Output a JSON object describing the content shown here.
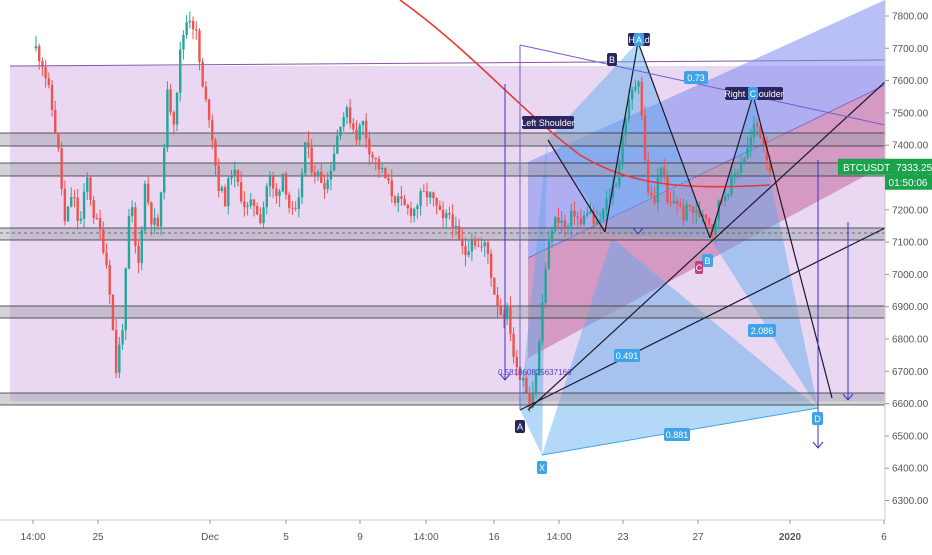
{
  "colors": {
    "bull": "#26a69a",
    "bear": "#ef5350",
    "purple_fill": "#d9b8e8",
    "pink_fill": "#f28a9c",
    "blue_fill": "#7d8cf0",
    "harmonic_fill": "#58a8ee",
    "ma_line": "#e53935",
    "price_badge": "#1aa34a",
    "axis_text": "#555555",
    "marker_dark": "#2b2660",
    "marker_blue": "#3fa3e8"
  },
  "chart_data": {
    "type": "candlestick",
    "symbol": "BTCUSDT",
    "last_price": "7333.25",
    "countdown": "01:50:06",
    "y_axis": {
      "range": [
        6230,
        8030
      ],
      "ticks": [
        "7800.00",
        "7700.00",
        "7600.00",
        "7500.00",
        "7400.00",
        "7300.00",
        "7200.00",
        "7100.00",
        "7000.00",
        "6900.00",
        "6800.00",
        "6700.00",
        "6600.00",
        "6500.00",
        "6400.00",
        "6300.00"
      ]
    },
    "x_axis": {
      "ticks": [
        "14:00",
        "25",
        "Dec",
        "5",
        "9",
        "14:00",
        "16",
        "14:00",
        "23",
        "27",
        "2020",
        "6"
      ]
    },
    "ohlc_path": [
      7700,
      7650,
      7540,
      7400,
      7150,
      7260,
      7140,
      7300,
      7180,
      7120,
      7000,
      6700,
      6860,
      7250,
      7000,
      7280,
      7160,
      7150,
      7560,
      7480,
      7720,
      7810,
      7750,
      7560,
      7480,
      7280,
      7230,
      7330,
      7260,
      7200,
      7220,
      7170,
      7310,
      7230,
      7320,
      7190,
      7180,
      7410,
      7330,
      7300,
      7280,
      7380,
      7490,
      7500,
      7430,
      7470,
      7380,
      7340,
      7300,
      7250,
      7220,
      7200,
      7200,
      7240,
      7250,
      7210,
      7160,
      7190,
      7110,
      7060,
      7120,
      7080,
      7090,
      6950,
      6880,
      6880,
      6700,
      6690,
      6600,
      6720,
      7000,
      7150,
      7180,
      7130,
      7200,
      7150,
      7210,
      7140,
      7190,
      7250,
      7300,
      7480,
      7560,
      7620,
      7280,
      7210,
      7350,
      7200,
      7240,
      7180,
      7210,
      7180,
      7200,
      7140,
      7220,
      7260,
      7300,
      7350,
      7390,
      7470,
      7420,
      7330
    ],
    "labels": [
      "Left Shoulder",
      "Head",
      "Right Shoulder"
    ],
    "harmonic_points": [
      "X",
      "A",
      "B",
      "C",
      "D"
    ],
    "harmonic_ratios": [
      "0.73",
      "0.491",
      "2.086",
      "0.881"
    ],
    "small_markers": [
      "A",
      "B",
      "C",
      "D"
    ],
    "fib_text": "0.581860825637166"
  }
}
